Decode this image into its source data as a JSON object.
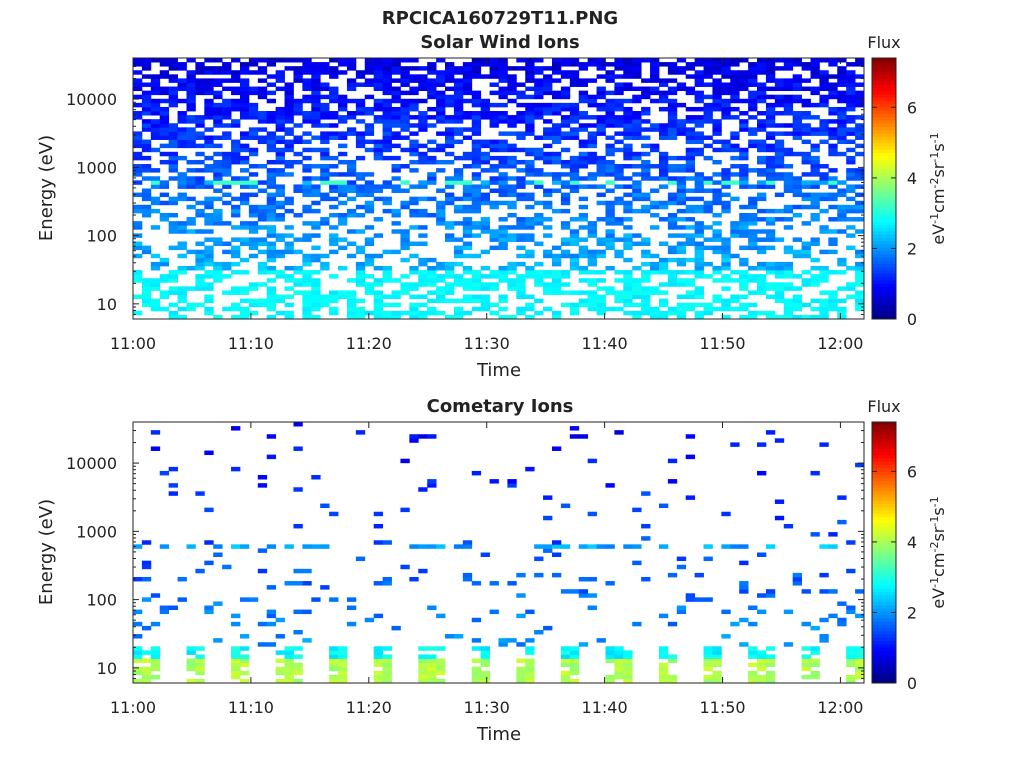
{
  "figure_title": "RPCICA160729T11.PNG",
  "colorbar": {
    "label": "Flux",
    "unit_html": "eV<tspan baseline-shift='super' font-size='11'>-1</tspan>cm<tspan baseline-shift='super' font-size='11'>-2</tspan>sr<tspan baseline-shift='super' font-size='11'>-1</tspan>s<tspan baseline-shift='super' font-size='11'>-1</tspan>",
    "range": [
      0,
      7.4
    ],
    "ticks": [
      "0",
      "2",
      "4",
      "6"
    ],
    "colormap": "jet"
  },
  "chart_data": [
    {
      "type": "heatmap",
      "title": "Solar Wind Ions",
      "xlabel": "Time",
      "ylabel": "Energy (eV)",
      "x_ticks": [
        "11:00",
        "11:10",
        "11:20",
        "11:30",
        "11:40",
        "11:50",
        "12:00"
      ],
      "x_range": [
        "11:00",
        "12:02"
      ],
      "y_ticks": [
        "10",
        "100",
        "1000",
        "10000"
      ],
      "y_range": [
        6,
        40000
      ],
      "y_scale": "log",
      "z_range": [
        0,
        7.4
      ],
      "pattern": {
        "low_energy_flux_level": 2.6,
        "high_energy_flux_level": 0.5,
        "band_energy_eV": 620,
        "band_flux_level": 3.2,
        "cycle_period_min": 4,
        "density": "high"
      }
    },
    {
      "type": "heatmap",
      "title": "Cometary Ions",
      "xlabel": "Time",
      "ylabel": "Energy (eV)",
      "x_ticks": [
        "11:00",
        "11:10",
        "11:20",
        "11:30",
        "11:40",
        "11:50",
        "12:00"
      ],
      "x_range": [
        "11:00",
        "12:02"
      ],
      "y_ticks": [
        "10",
        "100",
        "1000",
        "10000"
      ],
      "y_range": [
        6,
        40000
      ],
      "y_scale": "log",
      "z_range": [
        0,
        7.4
      ],
      "pattern": {
        "low_energy_flux_level": 3.8,
        "high_energy_flux_level": 0.6,
        "band_energy_eV": 620,
        "band_flux_level": 1.8,
        "cycle_period_min": 4,
        "density": "sparse"
      }
    }
  ]
}
